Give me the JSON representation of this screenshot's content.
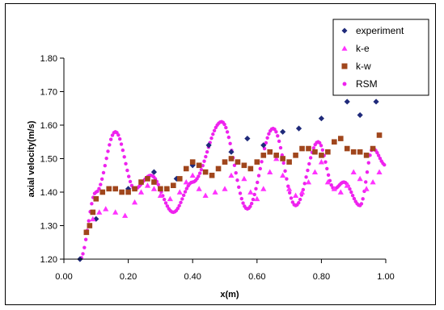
{
  "chart_data": {
    "type": "scatter",
    "title": "",
    "xlabel": "x(m)",
    "ylabel": "axial velocity(m/s)",
    "xlim": [
      0.0,
      1.0
    ],
    "ylim": [
      1.2,
      1.8
    ],
    "x_ticks": [
      "0.00",
      "0.20",
      "0.40",
      "0.60",
      "0.80",
      "1.00"
    ],
    "y_ticks": [
      "1.20",
      "1.30",
      "1.40",
      "1.50",
      "1.60",
      "1.70",
      "1.80"
    ],
    "grid": false,
    "legend_position": "top-right",
    "series": [
      {
        "name": "experiment",
        "marker": "diamond",
        "color": "#1f2a7a",
        "points": [
          [
            0.05,
            1.2
          ],
          [
            0.1,
            1.32
          ],
          [
            0.2,
            1.41
          ],
          [
            0.28,
            1.46
          ],
          [
            0.35,
            1.44
          ],
          [
            0.4,
            1.48
          ],
          [
            0.45,
            1.54
          ],
          [
            0.52,
            1.52
          ],
          [
            0.57,
            1.56
          ],
          [
            0.62,
            1.54
          ],
          [
            0.68,
            1.58
          ],
          [
            0.73,
            1.59
          ],
          [
            0.8,
            1.62
          ],
          [
            0.88,
            1.67
          ],
          [
            0.92,
            1.63
          ],
          [
            0.97,
            1.67
          ]
        ]
      },
      {
        "name": "k-e",
        "marker": "triangle",
        "color": "#ff33ff",
        "points": [
          [
            0.07,
            1.28
          ],
          [
            0.09,
            1.32
          ],
          [
            0.11,
            1.34
          ],
          [
            0.13,
            1.35
          ],
          [
            0.16,
            1.34
          ],
          [
            0.19,
            1.33
          ],
          [
            0.22,
            1.37
          ],
          [
            0.24,
            1.4
          ],
          [
            0.26,
            1.42
          ],
          [
            0.28,
            1.41
          ],
          [
            0.3,
            1.39
          ],
          [
            0.33,
            1.38
          ],
          [
            0.36,
            1.4
          ],
          [
            0.38,
            1.43
          ],
          [
            0.4,
            1.45
          ],
          [
            0.42,
            1.41
          ],
          [
            0.44,
            1.39
          ],
          [
            0.47,
            1.4
          ],
          [
            0.5,
            1.41
          ],
          [
            0.52,
            1.45
          ],
          [
            0.54,
            1.49
          ],
          [
            0.56,
            1.44
          ],
          [
            0.58,
            1.4
          ],
          [
            0.6,
            1.38
          ],
          [
            0.62,
            1.41
          ],
          [
            0.64,
            1.46
          ],
          [
            0.66,
            1.5
          ],
          [
            0.68,
            1.45
          ],
          [
            0.7,
            1.41
          ],
          [
            0.72,
            1.39
          ],
          [
            0.74,
            1.4
          ],
          [
            0.76,
            1.43
          ],
          [
            0.78,
            1.46
          ],
          [
            0.8,
            1.49
          ],
          [
            0.82,
            1.43
          ],
          [
            0.84,
            1.41
          ],
          [
            0.86,
            1.4
          ],
          [
            0.88,
            1.42
          ],
          [
            0.9,
            1.46
          ],
          [
            0.92,
            1.44
          ],
          [
            0.94,
            1.41
          ],
          [
            0.96,
            1.43
          ],
          [
            0.98,
            1.46
          ]
        ]
      },
      {
        "name": "k-w",
        "marker": "square",
        "color": "#a0461c",
        "points": [
          [
            0.07,
            1.28
          ],
          [
            0.08,
            1.3
          ],
          [
            0.09,
            1.34
          ],
          [
            0.1,
            1.38
          ],
          [
            0.12,
            1.4
          ],
          [
            0.14,
            1.41
          ],
          [
            0.16,
            1.41
          ],
          [
            0.18,
            1.4
          ],
          [
            0.2,
            1.4
          ],
          [
            0.22,
            1.41
          ],
          [
            0.24,
            1.43
          ],
          [
            0.26,
            1.44
          ],
          [
            0.28,
            1.43
          ],
          [
            0.3,
            1.41
          ],
          [
            0.32,
            1.41
          ],
          [
            0.34,
            1.42
          ],
          [
            0.36,
            1.44
          ],
          [
            0.38,
            1.47
          ],
          [
            0.4,
            1.49
          ],
          [
            0.42,
            1.48
          ],
          [
            0.44,
            1.46
          ],
          [
            0.46,
            1.45
          ],
          [
            0.48,
            1.47
          ],
          [
            0.5,
            1.49
          ],
          [
            0.52,
            1.5
          ],
          [
            0.54,
            1.49
          ],
          [
            0.56,
            1.48
          ],
          [
            0.58,
            1.47
          ],
          [
            0.6,
            1.49
          ],
          [
            0.62,
            1.51
          ],
          [
            0.64,
            1.52
          ],
          [
            0.66,
            1.51
          ],
          [
            0.68,
            1.5
          ],
          [
            0.7,
            1.49
          ],
          [
            0.72,
            1.51
          ],
          [
            0.74,
            1.53
          ],
          [
            0.76,
            1.53
          ],
          [
            0.78,
            1.52
          ],
          [
            0.8,
            1.51
          ],
          [
            0.82,
            1.52
          ],
          [
            0.84,
            1.55
          ],
          [
            0.86,
            1.56
          ],
          [
            0.88,
            1.53
          ],
          [
            0.9,
            1.52
          ],
          [
            0.92,
            1.52
          ],
          [
            0.94,
            1.51
          ],
          [
            0.96,
            1.53
          ],
          [
            0.98,
            1.57
          ]
        ]
      },
      {
        "name": "RSM",
        "marker": "dot-line",
        "color": "#ee22ee",
        "x_start": 0.05,
        "x_end": 1.0,
        "peaks": [
          [
            0.05,
            1.2
          ],
          [
            0.1,
            1.4
          ],
          [
            0.16,
            1.58
          ],
          [
            0.22,
            1.41
          ],
          [
            0.27,
            1.45
          ],
          [
            0.34,
            1.34
          ],
          [
            0.4,
            1.43
          ],
          [
            0.49,
            1.61
          ],
          [
            0.57,
            1.35
          ],
          [
            0.65,
            1.59
          ],
          [
            0.72,
            1.36
          ],
          [
            0.79,
            1.55
          ],
          [
            0.84,
            1.41
          ],
          [
            0.87,
            1.43
          ],
          [
            0.92,
            1.36
          ],
          [
            0.96,
            1.53
          ],
          [
            1.0,
            1.48
          ]
        ]
      }
    ]
  }
}
